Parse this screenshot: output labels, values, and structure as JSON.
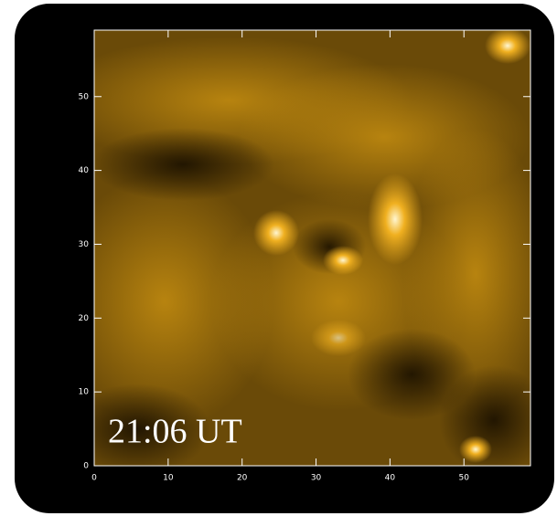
{
  "chart_data": {
    "type": "image",
    "annotation": "21:06 UT",
    "xlim": [
      0,
      59
    ],
    "ylim": [
      0,
      59
    ],
    "xticks": [
      0,
      10,
      20,
      30,
      40,
      50
    ],
    "yticks": [
      0,
      10,
      20,
      30,
      40,
      50
    ]
  }
}
